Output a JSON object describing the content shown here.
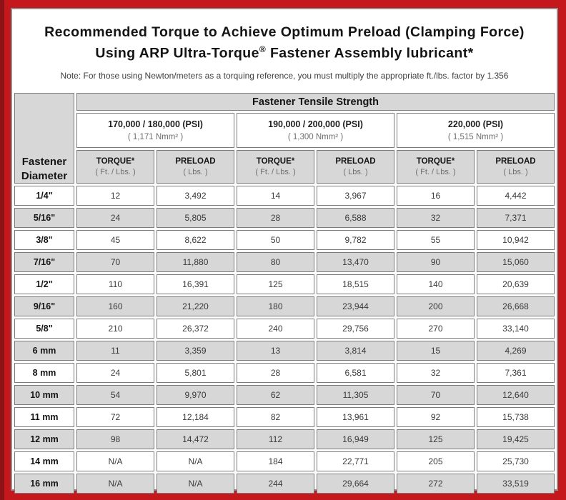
{
  "colors": {
    "frame_red": "#c5181d",
    "frame_dark_red": "#8d1216",
    "panel_border": "#938b8b",
    "cell_gray": "#d7d7d7",
    "cell_border": "#7a7a7a"
  },
  "title": {
    "line1": "Recommended Torque to Achieve Optimum Preload (Clamping Force)",
    "line2_pre": "Using ARP Ultra-Torque",
    "line2_reg": "®",
    "line2_post": " Fastener Assembly lubricant*",
    "note": "Note: For those using Newton/meters as a torquing reference, you must multiply the appropriate ft./lbs. factor by 1.356"
  },
  "table": {
    "group_header": "Fastener Tensile Strength",
    "corner_line1": "Fastener",
    "corner_line2": "Diameter",
    "strength_groups": [
      {
        "psi": "170,000 / 180,000 (PSI)",
        "nmm": "( 1,171 Nmm² )"
      },
      {
        "psi": "190,000 / 200,000 (PSI)",
        "nmm": "( 1,300 Nmm² )"
      },
      {
        "psi": "220,000 (PSI)",
        "nmm": "( 1,515 Nmm² )"
      }
    ],
    "columns": [
      {
        "label": "TORQUE*",
        "unit": "( Ft. / Lbs. )"
      },
      {
        "label": "PRELOAD",
        "unit": "( Lbs. )"
      },
      {
        "label": "TORQUE*",
        "unit": "( Ft. / Lbs. )"
      },
      {
        "label": "PRELOAD",
        "unit": "( Lbs. )"
      },
      {
        "label": "TORQUE*",
        "unit": "( Ft. / Lbs. )"
      },
      {
        "label": "PRELOAD",
        "unit": "( Lbs. )"
      }
    ],
    "rows": [
      {
        "diameter": "1/4\"",
        "values": [
          "12",
          "3,492",
          "14",
          "3,967",
          "16",
          "4,442"
        ]
      },
      {
        "diameter": "5/16\"",
        "values": [
          "24",
          "5,805",
          "28",
          "6,588",
          "32",
          "7,371"
        ]
      },
      {
        "diameter": "3/8\"",
        "values": [
          "45",
          "8,622",
          "50",
          "9,782",
          "55",
          "10,942"
        ]
      },
      {
        "diameter": "7/16\"",
        "values": [
          "70",
          "11,880",
          "80",
          "13,470",
          "90",
          "15,060"
        ]
      },
      {
        "diameter": "1/2\"",
        "values": [
          "110",
          "16,391",
          "125",
          "18,515",
          "140",
          "20,639"
        ]
      },
      {
        "diameter": "9/16\"",
        "values": [
          "160",
          "21,220",
          "180",
          "23,944",
          "200",
          "26,668"
        ]
      },
      {
        "diameter": "5/8\"",
        "values": [
          "210",
          "26,372",
          "240",
          "29,756",
          "270",
          "33,140"
        ]
      },
      {
        "diameter": "6 mm",
        "values": [
          "11",
          "3,359",
          "13",
          "3,814",
          "15",
          "4,269"
        ]
      },
      {
        "diameter": "8 mm",
        "values": [
          "24",
          "5,801",
          "28",
          "6,581",
          "32",
          "7,361"
        ]
      },
      {
        "diameter": "10 mm",
        "values": [
          "54",
          "9,970",
          "62",
          "11,305",
          "70",
          "12,640"
        ]
      },
      {
        "diameter": "11 mm",
        "values": [
          "72",
          "12,184",
          "82",
          "13,961",
          "92",
          "15,738"
        ]
      },
      {
        "diameter": "12 mm",
        "values": [
          "98",
          "14,472",
          "112",
          "16,949",
          "125",
          "19,425"
        ]
      },
      {
        "diameter": "14 mm",
        "values": [
          "N/A",
          "N/A",
          "184",
          "22,771",
          "205",
          "25,730"
        ]
      },
      {
        "diameter": "16 mm",
        "values": [
          "N/A",
          "N/A",
          "244",
          "29,664",
          "272",
          "33,519"
        ]
      }
    ]
  }
}
